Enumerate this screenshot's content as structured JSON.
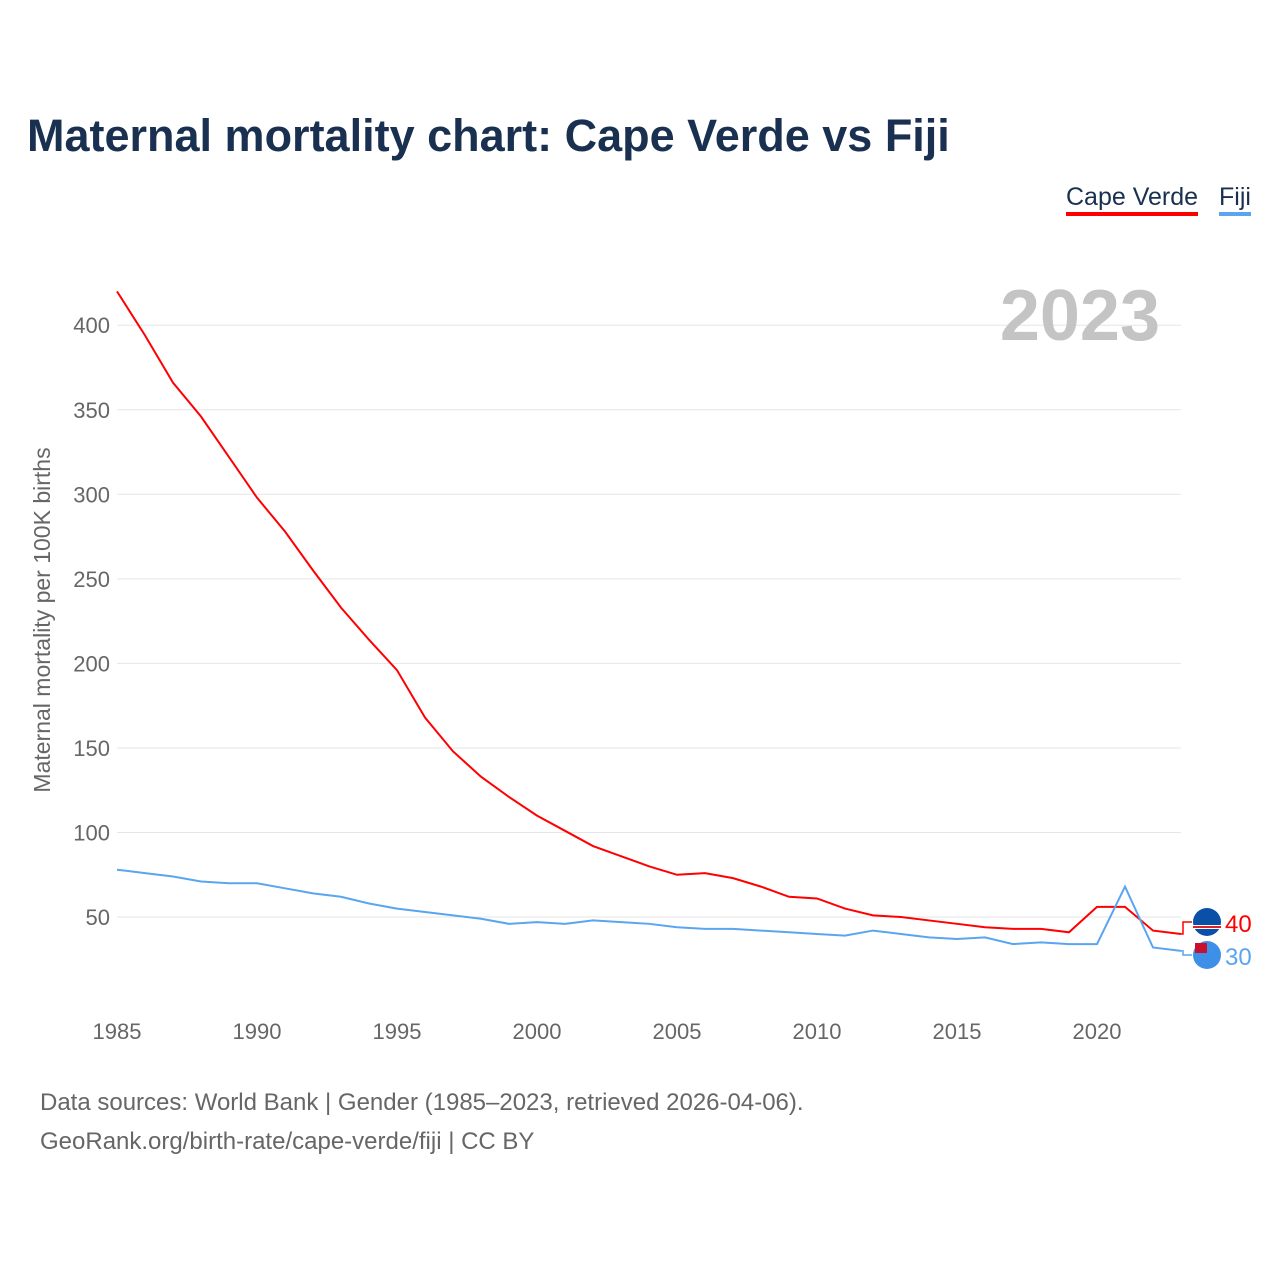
{
  "chart_data": {
    "type": "line",
    "title": "Maternal mortality chart: Cape Verde vs Fiji",
    "ylabel": "Maternal mortality per 100K births",
    "xlabel": "",
    "year_label": "2023",
    "xlim": [
      1985,
      2023
    ],
    "ylim": [
      0,
      420
    ],
    "yticks": [
      50,
      100,
      150,
      200,
      250,
      300,
      350,
      400
    ],
    "xticks": [
      1985,
      1990,
      1995,
      2000,
      2005,
      2010,
      2015,
      2020
    ],
    "grid": true,
    "legend_position": "top-right",
    "x": [
      1985,
      1986,
      1987,
      1988,
      1989,
      1990,
      1991,
      1992,
      1993,
      1994,
      1995,
      1996,
      1997,
      1998,
      1999,
      2000,
      2001,
      2002,
      2003,
      2004,
      2005,
      2006,
      2007,
      2008,
      2009,
      2010,
      2011,
      2012,
      2013,
      2014,
      2015,
      2016,
      2017,
      2018,
      2019,
      2020,
      2021,
      2022,
      2023
    ],
    "series": [
      {
        "name": "Cape Verde",
        "color": "#ff0000",
        "end_label": "40",
        "values": [
          420,
          394,
          366,
          346,
          322,
          298,
          278,
          255,
          233,
          214,
          196,
          168,
          148,
          133,
          121,
          110,
          101,
          92,
          86,
          80,
          75,
          76,
          73,
          68,
          62,
          61,
          55,
          51,
          50,
          48,
          46,
          44,
          43,
          43,
          41,
          56,
          56,
          42,
          40
        ]
      },
      {
        "name": "Fiji",
        "color": "#5aa5f0",
        "end_label": "30",
        "values": [
          78,
          76,
          74,
          71,
          70,
          70,
          67,
          64,
          62,
          58,
          55,
          53,
          51,
          49,
          46,
          47,
          46,
          48,
          47,
          46,
          44,
          43,
          43,
          42,
          41,
          40,
          39,
          42,
          40,
          38,
          37,
          38,
          34,
          35,
          34,
          34,
          68,
          32,
          30
        ]
      }
    ]
  },
  "footer": {
    "line1": "Data sources: World Bank | Gender (1985–2023, retrieved 2026-04-06).",
    "line2": "GeoRank.org/birth-rate/cape-verde/fiji | CC BY"
  }
}
